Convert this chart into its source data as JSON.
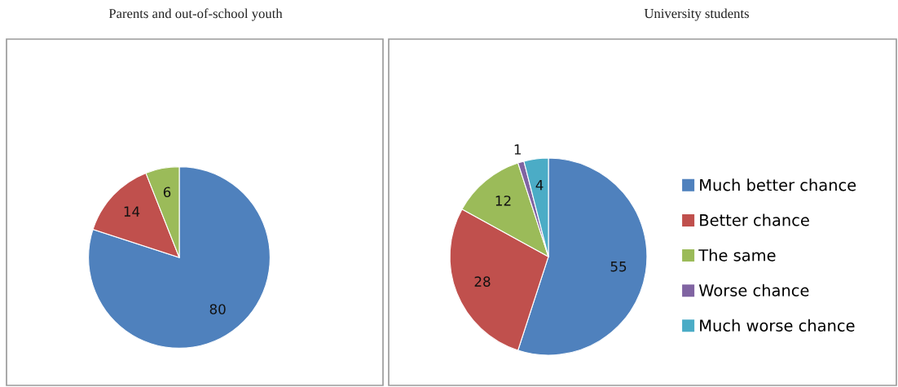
{
  "chart_data": [
    {
      "type": "pie",
      "title": "Parents and out-of-school youth",
      "categories": [
        null,
        null,
        null
      ],
      "values": [
        80,
        14,
        6
      ],
      "colors": [
        "#4f81bd",
        "#c0504d",
        "#9bbb59"
      ],
      "data_labels": true,
      "legend": false
    },
    {
      "type": "pie",
      "title": "University students",
      "categories": [
        "Much better chance",
        "Better chance",
        "The same",
        "Worse chance",
        "Much worse chance"
      ],
      "values": [
        55,
        28,
        12,
        1,
        4
      ],
      "colors": [
        "#4f81bd",
        "#c0504d",
        "#9bbb59",
        "#8064a2",
        "#4bacc6"
      ],
      "data_labels": true,
      "legend": "right"
    }
  ]
}
